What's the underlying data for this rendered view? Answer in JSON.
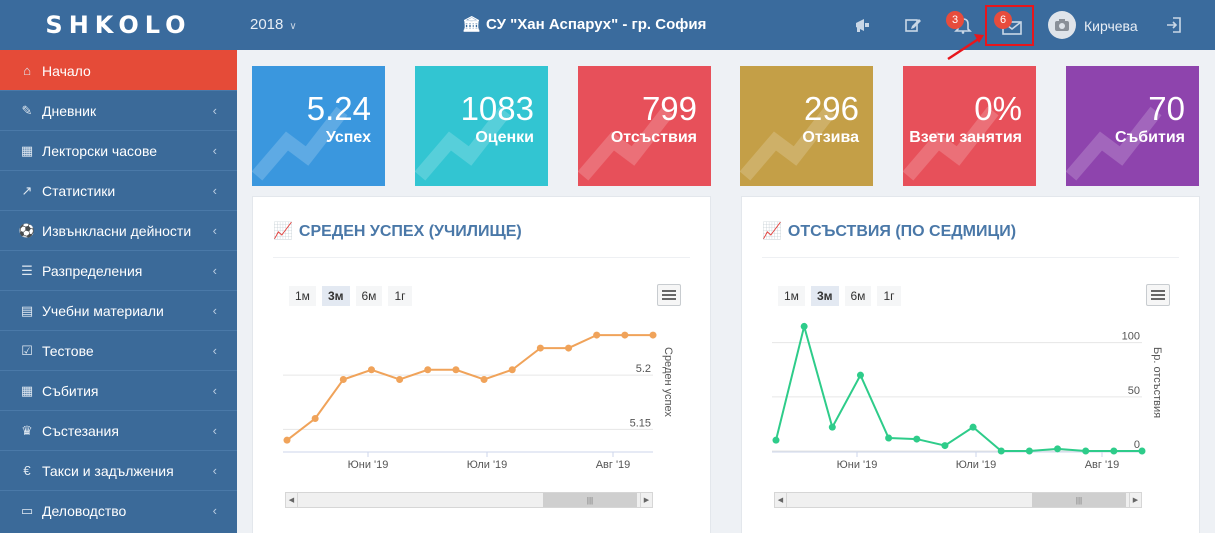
{
  "header": {
    "logo": "SHKOLO",
    "year": "2018",
    "school": "СУ \"Хан Аспарух\" - гр. София",
    "notifications_count": "3",
    "messages_count": "6",
    "username": "Кирчева"
  },
  "sidebar": {
    "items": [
      {
        "label": "Начало",
        "icon": "home-icon"
      },
      {
        "label": "Дневник",
        "icon": "edit-icon"
      },
      {
        "label": "Лекторски часове",
        "icon": "calendar-plus-icon"
      },
      {
        "label": "Статистики",
        "icon": "line-chart-icon"
      },
      {
        "label": "Извънкласни дейности",
        "icon": "ball-icon"
      },
      {
        "label": "Разпределения",
        "icon": "list-icon"
      },
      {
        "label": "Учебни материали",
        "icon": "book-icon"
      },
      {
        "label": "Тестове",
        "icon": "checkbox-icon"
      },
      {
        "label": "Събития",
        "icon": "calendar-icon"
      },
      {
        "label": "Състезания",
        "icon": "trophy-icon"
      },
      {
        "label": "Такси и задължения",
        "icon": "euro-icon"
      },
      {
        "label": "Деловодство",
        "icon": "folder-icon"
      }
    ]
  },
  "tiles": [
    {
      "value": "5.24",
      "label": "Успех",
      "color": "#3a97de"
    },
    {
      "value": "1083",
      "label": "Оценки",
      "color": "#32c5d2"
    },
    {
      "value": "799",
      "label": "Отсъствия",
      "color": "#e7505a"
    },
    {
      "value": "296",
      "label": "Отзива",
      "color": "#c49f47"
    },
    {
      "value": "0%",
      "label": "Взети занятия",
      "color": "#e7505a"
    },
    {
      "value": "70",
      "label": "Събития",
      "color": "#8e44ad"
    }
  ],
  "panels": [
    {
      "title": "СРЕДЕН УСПЕХ (УЧИЛИЩЕ)",
      "range_buttons": [
        "1м",
        "3м",
        "6м",
        "1г"
      ],
      "active_range": "3м",
      "ylabel": "Среден успех",
      "yticks": [
        "5.2",
        "5.15"
      ],
      "xticks": [
        "Юни '19",
        "Юли '19",
        "Авг '19"
      ]
    },
    {
      "title": "ОТСЪСТВИЯ (ПО СЕДМИЦИ)",
      "range_buttons": [
        "1м",
        "3м",
        "6м",
        "1г"
      ],
      "active_range": "3м",
      "ylabel": "Бр. отсъствия",
      "yticks": [
        "100",
        "50",
        "0"
      ],
      "xticks": [
        "Юни '19",
        "Юли '19",
        "Авг '19"
      ]
    }
  ],
  "chart_data": [
    {
      "type": "line",
      "title": "СРЕДЕН УСПЕХ (УЧИЛИЩЕ)",
      "ylabel": "Среден успех",
      "xticks": [
        "Юни '19",
        "Юли '19",
        "Авг '19"
      ],
      "ylim": [
        5.13,
        5.25
      ],
      "values": [
        5.14,
        5.16,
        5.196,
        5.205,
        5.196,
        5.205,
        5.205,
        5.196,
        5.205,
        5.225,
        5.225,
        5.237,
        5.237,
        5.237
      ],
      "color": "#f0a35a"
    },
    {
      "type": "line",
      "title": "ОТСЪСТВИЯ (ПО СЕДМИЦИ)",
      "ylabel": "Бр. отсъствия",
      "xticks": [
        "Юни '19",
        "Юли '19",
        "Авг '19"
      ],
      "ylim": [
        0,
        120
      ],
      "values": [
        10,
        115,
        22,
        70,
        12,
        11,
        5,
        22,
        0,
        0,
        2,
        0,
        0,
        0
      ],
      "color": "#2ecc8a"
    }
  ]
}
